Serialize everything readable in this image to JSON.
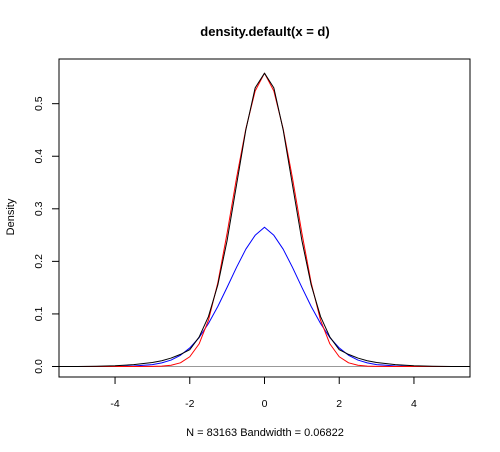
{
  "chart_data": {
    "type": "line",
    "title": "density.default(x = d)",
    "xlabel": "N = 83163   Bandwidth = 0.06822",
    "ylabel": "Density",
    "xlim": [
      -5.5,
      5.5
    ],
    "ylim": [
      -0.02,
      0.585
    ],
    "x_ticks": [
      -4,
      -2,
      0,
      2,
      4
    ],
    "x_tick_labels": [
      "-4",
      "-2",
      "0",
      "2",
      "4"
    ],
    "y_ticks": [
      0.0,
      0.1,
      0.2,
      0.3,
      0.4,
      0.5
    ],
    "y_tick_labels": [
      "0.0",
      "0.1",
      "0.2",
      "0.3",
      "0.4",
      "0.5"
    ],
    "grid": false,
    "legend": "none",
    "baseline_color": "#999999",
    "series": [
      {
        "color": "#0000ff",
        "x": [
          -5.5,
          -5,
          -4.5,
          -4,
          -3.5,
          -3,
          -2.75,
          -2.5,
          -2.25,
          -2,
          -1.75,
          -1.5,
          -1.25,
          -1,
          -0.75,
          -0.5,
          -0.25,
          0,
          0.25,
          0.5,
          0.75,
          1,
          1.25,
          1.5,
          1.75,
          2,
          2.25,
          2.5,
          2.75,
          3,
          3.5,
          4,
          4.5,
          5,
          5.5
        ],
        "y": [
          0.0,
          0.0,
          0.0,
          0.0002,
          0.0009,
          0.0036,
          0.0069,
          0.0122,
          0.0213,
          0.0353,
          0.0549,
          0.0818,
          0.1141,
          0.1507,
          0.1884,
          0.2232,
          0.2496,
          0.265,
          0.2496,
          0.2232,
          0.1884,
          0.1507,
          0.1141,
          0.0818,
          0.0549,
          0.0353,
          0.0213,
          0.0122,
          0.0069,
          0.0036,
          0.0009,
          0.0002,
          0.0,
          0.0,
          0.0
        ]
      },
      {
        "color": "#ff0000",
        "x": [
          -5.5,
          -4,
          -3.5,
          -3,
          -2.75,
          -2.5,
          -2.25,
          -2,
          -1.75,
          -1.5,
          -1.25,
          -1,
          -0.75,
          -0.5,
          -0.25,
          0,
          0.25,
          0.5,
          0.75,
          1,
          1.25,
          1.5,
          1.75,
          2,
          2.25,
          2.5,
          2.75,
          3,
          3.5,
          4,
          5.5
        ],
        "y": [
          0.0,
          0.0,
          0.0,
          0.0002,
          0.0007,
          0.0024,
          0.007,
          0.0185,
          0.043,
          0.088,
          0.159,
          0.254,
          0.358,
          0.452,
          0.524,
          0.558,
          0.524,
          0.452,
          0.358,
          0.254,
          0.159,
          0.088,
          0.043,
          0.0185,
          0.007,
          0.0024,
          0.0007,
          0.0002,
          0.0,
          0.0,
          0.0
        ]
      },
      {
        "color": "#000000",
        "x": [
          -5.5,
          -5,
          -4.5,
          -4,
          -3.5,
          -3,
          -2.75,
          -2.5,
          -2.25,
          -2,
          -1.75,
          -1.5,
          -1.25,
          -1,
          -0.75,
          -0.5,
          -0.25,
          0,
          0.25,
          0.5,
          0.75,
          1,
          1.25,
          1.5,
          1.75,
          2,
          2.25,
          2.5,
          2.75,
          3,
          3.5,
          4,
          4.5,
          5,
          5.5
        ],
        "y": [
          0.0,
          0.0,
          0.0005,
          0.0015,
          0.0035,
          0.0075,
          0.011,
          0.016,
          0.023,
          0.032,
          0.056,
          0.095,
          0.155,
          0.24,
          0.345,
          0.45,
          0.53,
          0.558,
          0.53,
          0.45,
          0.345,
          0.24,
          0.155,
          0.095,
          0.056,
          0.032,
          0.023,
          0.016,
          0.011,
          0.0075,
          0.0035,
          0.0015,
          0.0005,
          0.0,
          0.0
        ]
      }
    ]
  }
}
